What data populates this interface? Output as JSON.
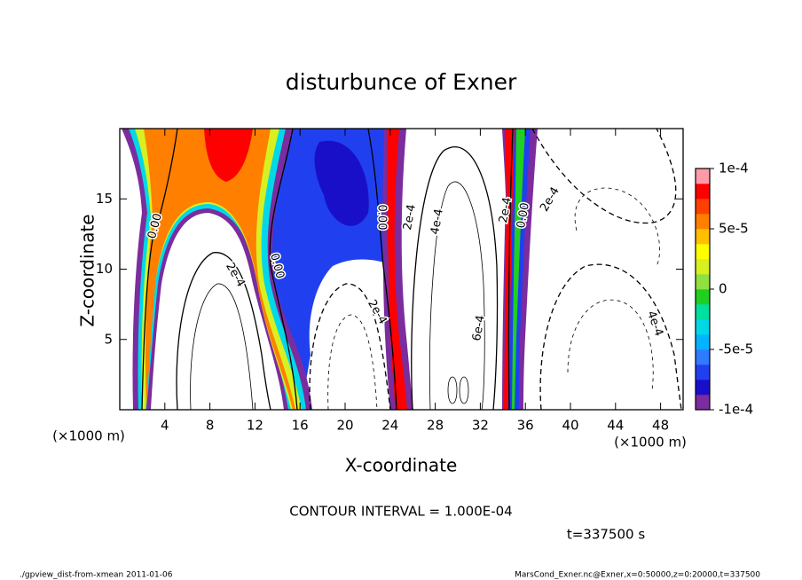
{
  "chart_data": {
    "type": "contour",
    "title": "disturbunce of Exner",
    "x_label": "X-coordinate",
    "y_label": "Z-coordinate",
    "x_unit": "(×1000 m)",
    "y_unit": "(×1000 m)",
    "xlim": [
      0,
      50
    ],
    "xticks": [
      4,
      8,
      12,
      16,
      20,
      24,
      28,
      32,
      36,
      40,
      44,
      48
    ],
    "ylim": [
      0,
      20
    ],
    "yticks": [
      5,
      10,
      15
    ],
    "colorbar": {
      "clim": [
        -0.0001,
        0.0001
      ],
      "ticks": [
        {
          "value": -0.0001,
          "label": "-1e-4"
        },
        {
          "value": -5e-05,
          "label": "-5e-5"
        },
        0,
        {
          "value": 5e-05,
          "label": "5e-5"
        },
        {
          "value": 0.0001,
          "label": "1e-4"
        }
      ],
      "colors": [
        "#7b2c9e",
        "#1a0fc8",
        "#2040f0",
        "#2f7bff",
        "#00b4ff",
        "#00d8e8",
        "#00e0a0",
        "#20d020",
        "#90e040",
        "#d8f020",
        "#ffff00",
        "#ffc000",
        "#ff8000",
        "#ff4000",
        "#ff0000",
        "#ff9aa8"
      ]
    },
    "contour_labels": [
      "0.00",
      "0.00",
      "0.00",
      "0.00",
      "2e-4",
      "2e-4",
      "2e-4",
      "2e-4",
      "2e-4",
      "4e-4",
      "4e-4",
      "6e-4"
    ],
    "contour_interval_text": "CONTOUR INTERVAL = 1.000E-04",
    "time_text": "t=337500 s",
    "footer_left": "./gpview_dist-from-xmean  2011-01-06",
    "footer_right": "MarsCond_Exner.nc@Exner,x=0:50000,z=0:20000,t=337500"
  }
}
